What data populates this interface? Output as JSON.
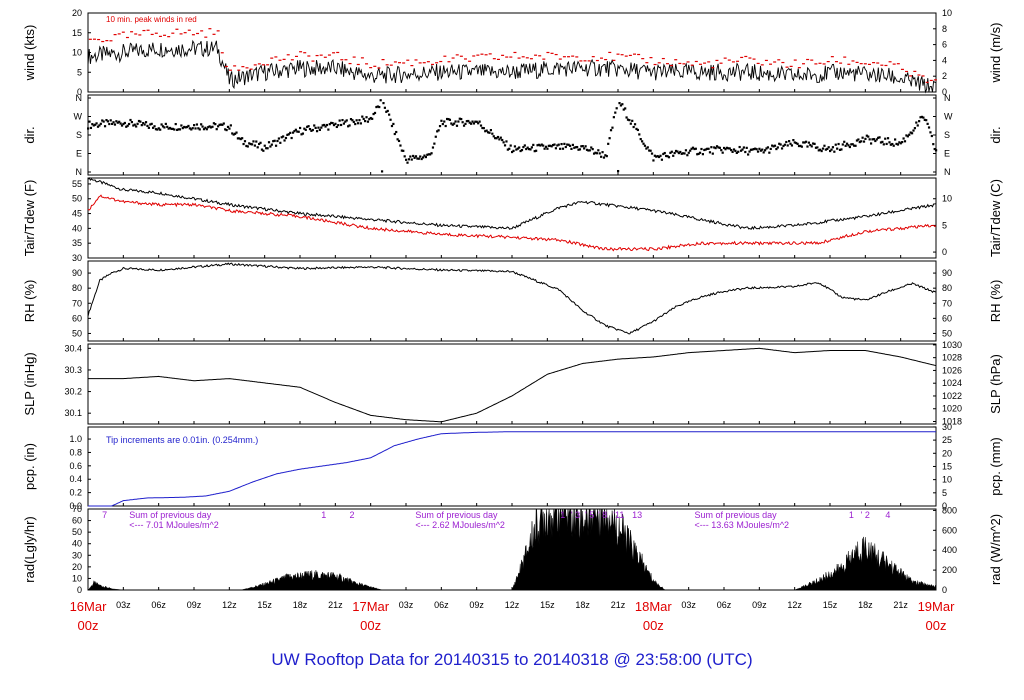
{
  "footer_title": "UW Rooftop Data for 20140315  to  20140318 @ 23:58:00  (UTC)",
  "colors": {
    "axis": "#000000",
    "red": "#e00000",
    "blue": "#1f1fcc",
    "purple": "#9b1fd0"
  },
  "time_axis": {
    "start": "2014-03-16 00:00",
    "end": "2014-03-19 00:00",
    "tick_labels": [
      "03z",
      "06z",
      "09z",
      "12z",
      "15z",
      "18z",
      "21z",
      "17Mar",
      "03z",
      "06z",
      "09z",
      "12z",
      "15z",
      "18z",
      "21z",
      "18Mar",
      "03z",
      "06z",
      "09z",
      "12z",
      "15z",
      "18z",
      "21z"
    ],
    "date_labels": [
      {
        "date": "16Mar",
        "time": "00z"
      },
      {
        "date": "17Mar",
        "time": "00z"
      },
      {
        "date": "18Mar",
        "time": "00z"
      },
      {
        "date": "19Mar",
        "time": "00z"
      }
    ]
  },
  "chart_data": [
    {
      "type": "line",
      "id": "wind",
      "ylabel": "wind (kts)",
      "ylabel_right": "wind (m/s)",
      "ylim": [
        0,
        20
      ],
      "yticks": [
        0,
        5,
        10,
        15,
        20
      ],
      "ylim_right": [
        0,
        10
      ],
      "yticks_right": [
        0,
        2,
        4,
        6,
        8,
        10
      ],
      "annotation": "10 min. peak winds in red",
      "series": [
        {
          "style": "black-line",
          "x_hours": [
            0,
            3,
            6,
            9,
            11,
            12,
            15,
            18,
            21,
            24,
            30,
            36,
            40,
            44,
            48,
            52,
            56,
            60,
            64,
            68,
            72
          ],
          "values": [
            9,
            10,
            11,
            11,
            11,
            3,
            5,
            6,
            6,
            4,
            5,
            5,
            6,
            6,
            5,
            5,
            5,
            4,
            5,
            4,
            1
          ]
        },
        {
          "style": "red-dashes",
          "x_hours": [
            0,
            3,
            6,
            9,
            11,
            12,
            15,
            18,
            21,
            24,
            30,
            36,
            40,
            44,
            48,
            52,
            56,
            60,
            64,
            68,
            72
          ],
          "values": [
            13,
            14,
            15,
            15,
            15,
            5,
            8,
            9,
            9,
            7,
            8,
            9,
            9,
            9,
            8,
            7,
            8,
            7,
            8,
            7,
            2
          ]
        }
      ]
    },
    {
      "type": "scatter",
      "id": "direction",
      "ylabel": "dir.",
      "ylabel_right": "dir.",
      "ytick_labels": [
        "N",
        "E",
        "S",
        "W",
        "N"
      ],
      "ylim": [
        0,
        360
      ],
      "series": [
        {
          "x_hours": [
            0,
            3,
            6,
            9,
            12,
            13,
            15,
            18,
            21,
            24,
            25,
            27,
            29,
            30,
            33,
            36,
            39,
            42,
            44,
            45,
            48,
            51,
            54,
            57,
            60,
            63,
            66,
            69,
            71,
            72
          ],
          "values": [
            230,
            240,
            220,
            225,
            220,
            150,
            120,
            200,
            230,
            260,
            350,
            60,
            80,
            240,
            245,
            110,
            120,
            120,
            80,
            350,
            70,
            100,
            110,
            100,
            140,
            110,
            160,
            140,
            270,
            100
          ]
        }
      ]
    },
    {
      "type": "line",
      "id": "temperature",
      "ylabel": "Tair/Tdew (F)",
      "ylabel_right": "Tair/Tdew (C)",
      "ylim": [
        30,
        57
      ],
      "yticks": [
        30,
        35,
        40,
        45,
        50,
        55
      ],
      "yticks_right": [
        0,
        5,
        10
      ],
      "series": [
        {
          "style": "black-line",
          "x_hours": [
            0,
            3,
            6,
            9,
            12,
            18,
            24,
            30,
            36,
            40,
            42,
            44,
            48,
            52,
            56,
            60,
            66,
            72
          ],
          "values": [
            57,
            53,
            52,
            50,
            48,
            45,
            43,
            41,
            40,
            47,
            49,
            48,
            46,
            43,
            40,
            41,
            44,
            48
          ]
        },
        {
          "style": "red-line",
          "x_hours": [
            0,
            1,
            3,
            6,
            9,
            12,
            18,
            24,
            30,
            36,
            40,
            44,
            48,
            52,
            56,
            60,
            62,
            66,
            72
          ],
          "values": [
            46,
            51,
            49,
            48,
            48,
            46,
            44,
            40,
            38,
            37,
            36,
            33,
            33,
            35,
            35,
            35,
            35,
            39,
            41
          ]
        }
      ]
    },
    {
      "type": "line",
      "id": "rh",
      "ylabel": "RH (%)",
      "ylabel_right": "RH (%)",
      "ylim": [
        45,
        98
      ],
      "yticks": [
        50,
        60,
        70,
        80,
        90
      ],
      "yticks_right": [
        50,
        60,
        70,
        80,
        90
      ],
      "series": [
        {
          "style": "black-line",
          "x_hours": [
            0,
            1,
            2,
            3,
            6,
            12,
            18,
            24,
            30,
            36,
            40,
            42,
            44,
            46,
            48,
            50,
            52,
            54,
            56,
            60,
            62,
            64,
            66,
            68,
            70,
            72
          ],
          "values": [
            62,
            85,
            90,
            93,
            92,
            96,
            93,
            94,
            92,
            91,
            79,
            65,
            55,
            50,
            58,
            68,
            74,
            78,
            80,
            81,
            84,
            74,
            72,
            78,
            83,
            77
          ]
        }
      ]
    },
    {
      "type": "line",
      "id": "slp",
      "ylabel": "SLP (inHg)",
      "ylabel_right": "SLP (hPa)",
      "ylim": [
        30.05,
        30.42
      ],
      "yticks": [
        30.1,
        30.2,
        30.3,
        30.4
      ],
      "yticks_right": [
        1018,
        1020,
        1022,
        1024,
        1026,
        1028,
        1030
      ],
      "series": [
        {
          "style": "black-line",
          "x_hours": [
            0,
            3,
            6,
            9,
            12,
            15,
            18,
            21,
            24,
            27,
            30,
            33,
            36,
            39,
            42,
            45,
            48,
            51,
            54,
            57,
            60,
            63,
            66,
            69,
            72
          ],
          "values": [
            30.26,
            30.26,
            30.27,
            30.25,
            30.26,
            30.24,
            30.22,
            30.15,
            30.09,
            30.07,
            30.06,
            30.1,
            30.18,
            30.28,
            30.33,
            30.35,
            30.36,
            30.38,
            30.39,
            30.4,
            30.38,
            30.39,
            30.39,
            30.36,
            30.32
          ]
        }
      ]
    },
    {
      "type": "line",
      "id": "precip",
      "ylabel": "pcp. (in)",
      "ylabel_right": "pcp. (mm)",
      "ylim": [
        0,
        1.18
      ],
      "yticks": [
        0.0,
        0.2,
        0.4,
        0.6,
        0.8,
        1.0
      ],
      "ytick_labels": [
        "0.0",
        "0.2",
        "0.4",
        "0.6",
        "0.8",
        "1.0"
      ],
      "yticks_right": [
        0,
        5,
        10,
        15,
        20,
        25,
        30
      ],
      "annotation": "Tip increments are 0.01in. (0.254mm.)",
      "series": [
        {
          "style": "blue-line",
          "x_hours": [
            0,
            2,
            3,
            5,
            8,
            10,
            12,
            14,
            16,
            18,
            20,
            22,
            24,
            26,
            28,
            30,
            33,
            36,
            72
          ],
          "values": [
            0.0,
            0.0,
            0.08,
            0.12,
            0.13,
            0.15,
            0.22,
            0.36,
            0.48,
            0.55,
            0.6,
            0.65,
            0.72,
            0.9,
            1.0,
            1.08,
            1.1,
            1.11,
            1.11
          ]
        }
      ]
    },
    {
      "type": "area",
      "id": "radiation",
      "ylabel": "rad(Lgly/hr)",
      "ylabel_right": "rad (W/m^2)",
      "ylim": [
        0,
        70
      ],
      "yticks": [
        0,
        10,
        20,
        30,
        40,
        50,
        60,
        70
      ],
      "yticks_right": [
        0,
        200,
        400,
        600,
        800
      ],
      "series": [
        {
          "style": "black-fill",
          "x_hours": [
            0,
            0.5,
            1,
            2,
            3,
            13,
            15,
            17,
            19,
            21,
            23,
            25,
            36,
            37,
            38,
            39,
            40,
            41,
            42,
            43,
            44,
            45,
            46,
            47,
            48,
            49,
            60,
            62,
            64,
            65,
            66,
            67,
            68,
            70,
            72
          ],
          "values": [
            0,
            6,
            4,
            1,
            0,
            0,
            5,
            11,
            13,
            12,
            5,
            0,
            0,
            25,
            55,
            66,
            68,
            70,
            62,
            68,
            70,
            55,
            40,
            24,
            8,
            0,
            0,
            8,
            19,
            30,
            38,
            28,
            22,
            7,
            3
          ]
        }
      ],
      "annotations": [
        {
          "x_hour": 1.2,
          "text": "7"
        },
        {
          "x_hour": 3.5,
          "text": "Sum of previous day"
        },
        {
          "x_hour": 3.5,
          "text": "<--- 7.01 MJoules/m^2",
          "row": 2
        },
        {
          "x_hour": 19.8,
          "text": "1"
        },
        {
          "x_hour": 22.2,
          "text": "2"
        },
        {
          "x_hour": 27.8,
          "text": "Sum of previous day"
        },
        {
          "x_hour": 27.8,
          "text": "<--- 2.62 MJoules/m^2",
          "row": 2
        },
        {
          "x_hour": 40.1,
          "text": "1"
        },
        {
          "x_hour": 41.0,
          "text": "' 3"
        },
        {
          "x_hour": 42.2,
          "text": "' 5"
        },
        {
          "x_hour": 43.3,
          "text": "' 8"
        },
        {
          "x_hour": 44.6,
          "text": "'11"
        },
        {
          "x_hour": 46.2,
          "text": "13"
        },
        {
          "x_hour": 51.5,
          "text": "Sum of previous day"
        },
        {
          "x_hour": 51.5,
          "text": "<--- 13.63 MJoules/m^2",
          "row": 2
        },
        {
          "x_hour": 64.6,
          "text": "1"
        },
        {
          "x_hour": 65.6,
          "text": "' 2"
        },
        {
          "x_hour": 67.7,
          "text": "4"
        }
      ]
    }
  ]
}
